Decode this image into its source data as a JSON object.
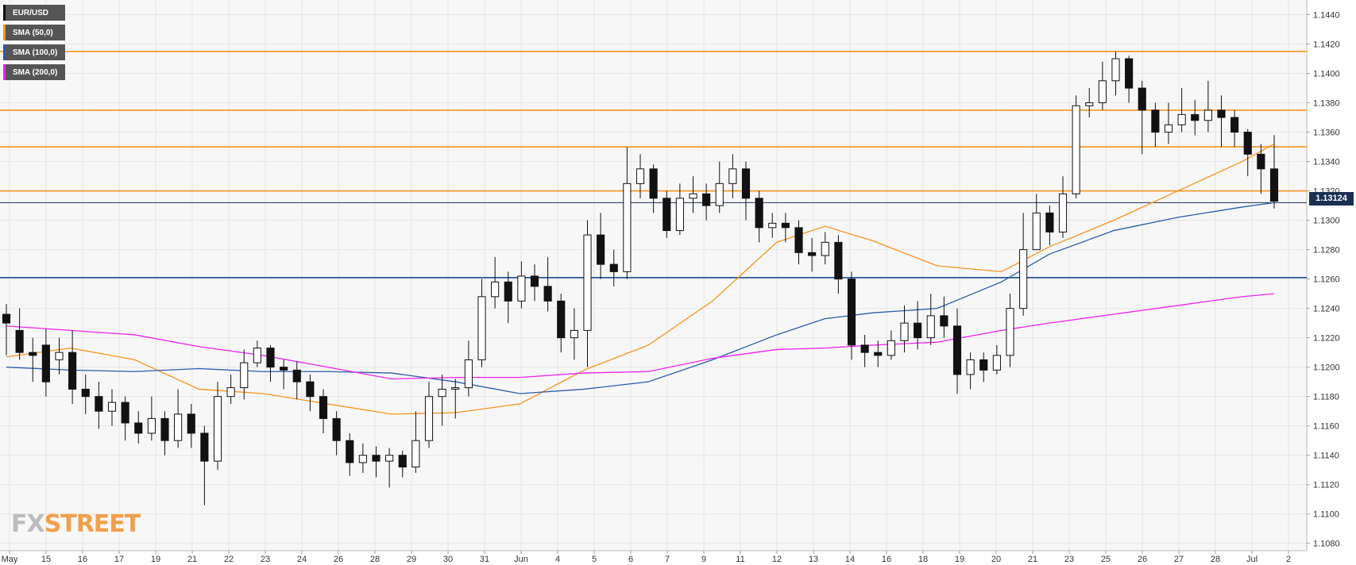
{
  "legend": [
    {
      "label": "EUR/USD",
      "color": "#111111"
    },
    {
      "label": "SMA (50,0)",
      "color": "#f7931e"
    },
    {
      "label": "SMA (100,0)",
      "color": "#2a5caa"
    },
    {
      "label": "SMA (200,0)",
      "color": "#ee22ee"
    }
  ],
  "logo": {
    "part1": "FX",
    "part2": "STREET"
  },
  "current_price": "1.13124",
  "chart_data": {
    "type": "candlestick",
    "symbol": "EUR/USD",
    "ylim": [
      1.1075,
      1.145
    ],
    "y_ticks": [
      "1.1440",
      "1.1420",
      "1.1400",
      "1.1380",
      "1.1360",
      "1.1340",
      "1.1320",
      "1.1300",
      "1.1280",
      "1.1260",
      "1.1240",
      "1.1220",
      "1.1200",
      "1.1180",
      "1.1160",
      "1.1140",
      "1.1120",
      "1.1100",
      "1.1080"
    ],
    "x_ticks": [
      "May",
      "15",
      "16",
      "17",
      "19",
      "21",
      "22",
      "23",
      "24",
      "26",
      "28",
      "29",
      "30",
      "31",
      "Jun",
      "4",
      "5",
      "6",
      "7",
      "9",
      "11",
      "12",
      "13",
      "14",
      "16",
      "18",
      "19",
      "20",
      "21",
      "23",
      "25",
      "26",
      "27",
      "28",
      "Jul",
      "2"
    ],
    "horizontal_levels": [
      {
        "value": 1.1415,
        "color": "#f7931e"
      },
      {
        "value": 1.1375,
        "color": "#f7931e"
      },
      {
        "value": 1.135,
        "color": "#f7931e"
      },
      {
        "value": 1.132,
        "color": "#f7931e"
      },
      {
        "value": 1.1312,
        "color": "#1a2f52"
      },
      {
        "value": 1.1261,
        "color": "#1f4f8f"
      }
    ],
    "series": [
      {
        "name": "SMA (50,0)",
        "color": "#f7931e",
        "values": [
          [
            0.0,
            1.1207
          ],
          [
            4.0,
            1.1213
          ],
          [
            8.0,
            1.1205
          ],
          [
            12.0,
            1.1185
          ],
          [
            16.0,
            1.1182
          ],
          [
            20.0,
            1.1175
          ],
          [
            24.0,
            1.1168
          ],
          [
            28.0,
            1.1169
          ],
          [
            32.0,
            1.1175
          ],
          [
            36.0,
            1.1198
          ],
          [
            40.0,
            1.1215
          ],
          [
            44.0,
            1.1245
          ],
          [
            48.0,
            1.1285
          ],
          [
            51.0,
            1.1296
          ],
          [
            54.0,
            1.1286
          ],
          [
            58.0,
            1.1269
          ],
          [
            62.0,
            1.1265
          ],
          [
            65.0,
            1.1282
          ],
          [
            69.0,
            1.13
          ],
          [
            73.0,
            1.132
          ],
          [
            77.0,
            1.134
          ],
          [
            79.0,
            1.1352
          ]
        ]
      },
      {
        "name": "SMA (100,0)",
        "color": "#2a5caa",
        "values": [
          [
            0.0,
            1.12
          ],
          [
            4.0,
            1.1198
          ],
          [
            8.0,
            1.1197
          ],
          [
            12.0,
            1.1199
          ],
          [
            16.0,
            1.1197
          ],
          [
            20.0,
            1.1197
          ],
          [
            24.0,
            1.1196
          ],
          [
            28.0,
            1.119
          ],
          [
            32.0,
            1.1182
          ],
          [
            36.0,
            1.1185
          ],
          [
            40.0,
            1.119
          ],
          [
            44.0,
            1.1205
          ],
          [
            48.0,
            1.1222
          ],
          [
            51.0,
            1.1233
          ],
          [
            54.0,
            1.1237
          ],
          [
            58.0,
            1.124
          ],
          [
            62.0,
            1.1258
          ],
          [
            65.0,
            1.1277
          ],
          [
            69.0,
            1.1293
          ],
          [
            73.0,
            1.1302
          ],
          [
            77.0,
            1.1309
          ],
          [
            79.0,
            1.1312
          ]
        ]
      },
      {
        "name": "SMA (200,0)",
        "color": "#ee22ee",
        "values": [
          [
            0.0,
            1.1228
          ],
          [
            4.0,
            1.1225
          ],
          [
            8.0,
            1.1222
          ],
          [
            12.0,
            1.1214
          ],
          [
            16.0,
            1.1208
          ],
          [
            20.0,
            1.12
          ],
          [
            24.0,
            1.1192
          ],
          [
            28.0,
            1.1193
          ],
          [
            32.0,
            1.1193
          ],
          [
            36.0,
            1.1196
          ],
          [
            40.0,
            1.1197
          ],
          [
            44.0,
            1.1206
          ],
          [
            48.0,
            1.1212
          ],
          [
            51.0,
            1.1213
          ],
          [
            54.0,
            1.1215
          ],
          [
            58.0,
            1.1217
          ],
          [
            62.0,
            1.1225
          ],
          [
            65.0,
            1.123
          ],
          [
            69.0,
            1.1236
          ],
          [
            73.0,
            1.1242
          ],
          [
            77.0,
            1.1248
          ],
          [
            79.0,
            1.125
          ]
        ]
      }
    ],
    "candles": [
      [
        1.1236,
        1.123,
        1.1243,
        1.1208
      ],
      [
        1.1225,
        1.121,
        1.124,
        1.1205
      ],
      [
        1.121,
        1.1208,
        1.122,
        1.119
      ],
      [
        1.1215,
        1.119,
        1.1226,
        1.118
      ],
      [
        1.1205,
        1.121,
        1.122,
        1.1195
      ],
      [
        1.121,
        1.1185,
        1.1225,
        1.1175
      ],
      [
        1.1185,
        1.118,
        1.1195,
        1.1168
      ],
      [
        1.118,
        1.117,
        1.119,
        1.1158
      ],
      [
        1.117,
        1.1176,
        1.1185,
        1.116
      ],
      [
        1.1176,
        1.1162,
        1.118,
        1.115
      ],
      [
        1.1162,
        1.1155,
        1.117,
        1.1148
      ],
      [
        1.1155,
        1.1165,
        1.118,
        1.115
      ],
      [
        1.1165,
        1.115,
        1.117,
        1.114
      ],
      [
        1.115,
        1.1168,
        1.1185,
        1.1145
      ],
      [
        1.1168,
        1.1155,
        1.1175,
        1.1145
      ],
      [
        1.1155,
        1.1136,
        1.116,
        1.1106
      ],
      [
        1.1136,
        1.118,
        1.119,
        1.113
      ],
      [
        1.118,
        1.1186,
        1.1195,
        1.1175
      ],
      [
        1.1186,
        1.1203,
        1.1212,
        1.1178
      ],
      [
        1.1203,
        1.1213,
        1.1218,
        1.12
      ],
      [
        1.1213,
        1.12,
        1.1215,
        1.119
      ],
      [
        1.12,
        1.1198,
        1.1205,
        1.1185
      ],
      [
        1.1198,
        1.119,
        1.1204,
        1.1178
      ],
      [
        1.119,
        1.118,
        1.1195,
        1.117
      ],
      [
        1.118,
        1.1165,
        1.1185,
        1.1155
      ],
      [
        1.1165,
        1.115,
        1.117,
        1.114
      ],
      [
        1.115,
        1.1135,
        1.1155,
        1.1126
      ],
      [
        1.1135,
        1.114,
        1.1148,
        1.1128
      ],
      [
        1.114,
        1.1136,
        1.1146,
        1.1125
      ],
      [
        1.1136,
        1.114,
        1.1145,
        1.1118
      ],
      [
        1.114,
        1.1132,
        1.1143,
        1.1125
      ],
      [
        1.1132,
        1.115,
        1.117,
        1.1128
      ],
      [
        1.115,
        1.118,
        1.119,
        1.1145
      ],
      [
        1.118,
        1.1185,
        1.1195,
        1.116
      ],
      [
        1.1185,
        1.1186,
        1.1192,
        1.1165
      ],
      [
        1.1186,
        1.1205,
        1.1218,
        1.118
      ],
      [
        1.1205,
        1.1248,
        1.126,
        1.12
      ],
      [
        1.1248,
        1.1258,
        1.1275,
        1.124
      ],
      [
        1.1258,
        1.1245,
        1.1265,
        1.123
      ],
      [
        1.1245,
        1.1262,
        1.1272,
        1.124
      ],
      [
        1.1262,
        1.1255,
        1.127,
        1.1245
      ],
      [
        1.1255,
        1.1245,
        1.1275,
        1.1238
      ],
      [
        1.1245,
        1.122,
        1.125,
        1.121
      ],
      [
        1.122,
        1.1225,
        1.124,
        1.1205
      ],
      [
        1.1225,
        1.129,
        1.13,
        1.12
      ],
      [
        1.129,
        1.127,
        1.1305,
        1.126
      ],
      [
        1.127,
        1.1265,
        1.128,
        1.1255
      ],
      [
        1.1265,
        1.1325,
        1.135,
        1.126
      ],
      [
        1.1325,
        1.1335,
        1.1345,
        1.1315
      ],
      [
        1.1335,
        1.1315,
        1.1338,
        1.1305
      ],
      [
        1.1315,
        1.1293,
        1.132,
        1.1288
      ],
      [
        1.1293,
        1.1315,
        1.1325,
        1.129
      ],
      [
        1.1315,
        1.1318,
        1.133,
        1.1305
      ],
      [
        1.1318,
        1.131,
        1.1325,
        1.13
      ],
      [
        1.131,
        1.1325,
        1.134,
        1.1305
      ],
      [
        1.1325,
        1.1335,
        1.1345,
        1.1315
      ],
      [
        1.1335,
        1.1315,
        1.134,
        1.13
      ],
      [
        1.1315,
        1.1295,
        1.132,
        1.1285
      ],
      [
        1.1295,
        1.1298,
        1.1305,
        1.1288
      ],
      [
        1.1298,
        1.1295,
        1.1305,
        1.1285
      ],
      [
        1.1295,
        1.1278,
        1.13,
        1.127
      ],
      [
        1.1278,
        1.1276,
        1.1288,
        1.1265
      ],
      [
        1.1276,
        1.1285,
        1.1292,
        1.127
      ],
      [
        1.1285,
        1.126,
        1.129,
        1.125
      ],
      [
        1.126,
        1.1215,
        1.1265,
        1.1205
      ],
      [
        1.1215,
        1.121,
        1.1222,
        1.12
      ],
      [
        1.121,
        1.1208,
        1.1218,
        1.12
      ],
      [
        1.1208,
        1.1218,
        1.1225,
        1.1205
      ],
      [
        1.1218,
        1.123,
        1.1242,
        1.121
      ],
      [
        1.123,
        1.122,
        1.1245,
        1.1212
      ],
      [
        1.122,
        1.1235,
        1.125,
        1.1215
      ],
      [
        1.1235,
        1.1228,
        1.1248,
        1.122
      ],
      [
        1.1228,
        1.1195,
        1.124,
        1.1182
      ],
      [
        1.1195,
        1.1205,
        1.121,
        1.1185
      ],
      [
        1.1205,
        1.1198,
        1.121,
        1.119
      ],
      [
        1.1198,
        1.1208,
        1.1215,
        1.1195
      ],
      [
        1.1208,
        1.124,
        1.125,
        1.12
      ],
      [
        1.124,
        1.128,
        1.1305,
        1.1235
      ],
      [
        1.128,
        1.1305,
        1.1318,
        1.1285
      ],
      [
        1.1305,
        1.1292,
        1.131,
        1.1283
      ],
      [
        1.1292,
        1.1318,
        1.133,
        1.1288
      ],
      [
        1.1318,
        1.1378,
        1.1385,
        1.1315
      ],
      [
        1.1378,
        1.138,
        1.139,
        1.137
      ],
      [
        1.138,
        1.1395,
        1.1408,
        1.1375
      ],
      [
        1.1395,
        1.141,
        1.1415,
        1.1385
      ],
      [
        1.141,
        1.139,
        1.1412,
        1.138
      ],
      [
        1.139,
        1.1375,
        1.1395,
        1.1345
      ],
      [
        1.1375,
        1.136,
        1.138,
        1.135
      ],
      [
        1.136,
        1.1365,
        1.138,
        1.1352
      ],
      [
        1.1365,
        1.1372,
        1.139,
        1.136
      ],
      [
        1.1372,
        1.1368,
        1.1382,
        1.1358
      ],
      [
        1.1368,
        1.1375,
        1.1395,
        1.136
      ],
      [
        1.1375,
        1.137,
        1.1385,
        1.135
      ],
      [
        1.137,
        1.136,
        1.1375,
        1.135
      ],
      [
        1.136,
        1.1345,
        1.1362,
        1.133
      ],
      [
        1.1345,
        1.1335,
        1.1352,
        1.1318
      ],
      [
        1.1335,
        1.1313,
        1.1358,
        1.1308
      ]
    ]
  }
}
